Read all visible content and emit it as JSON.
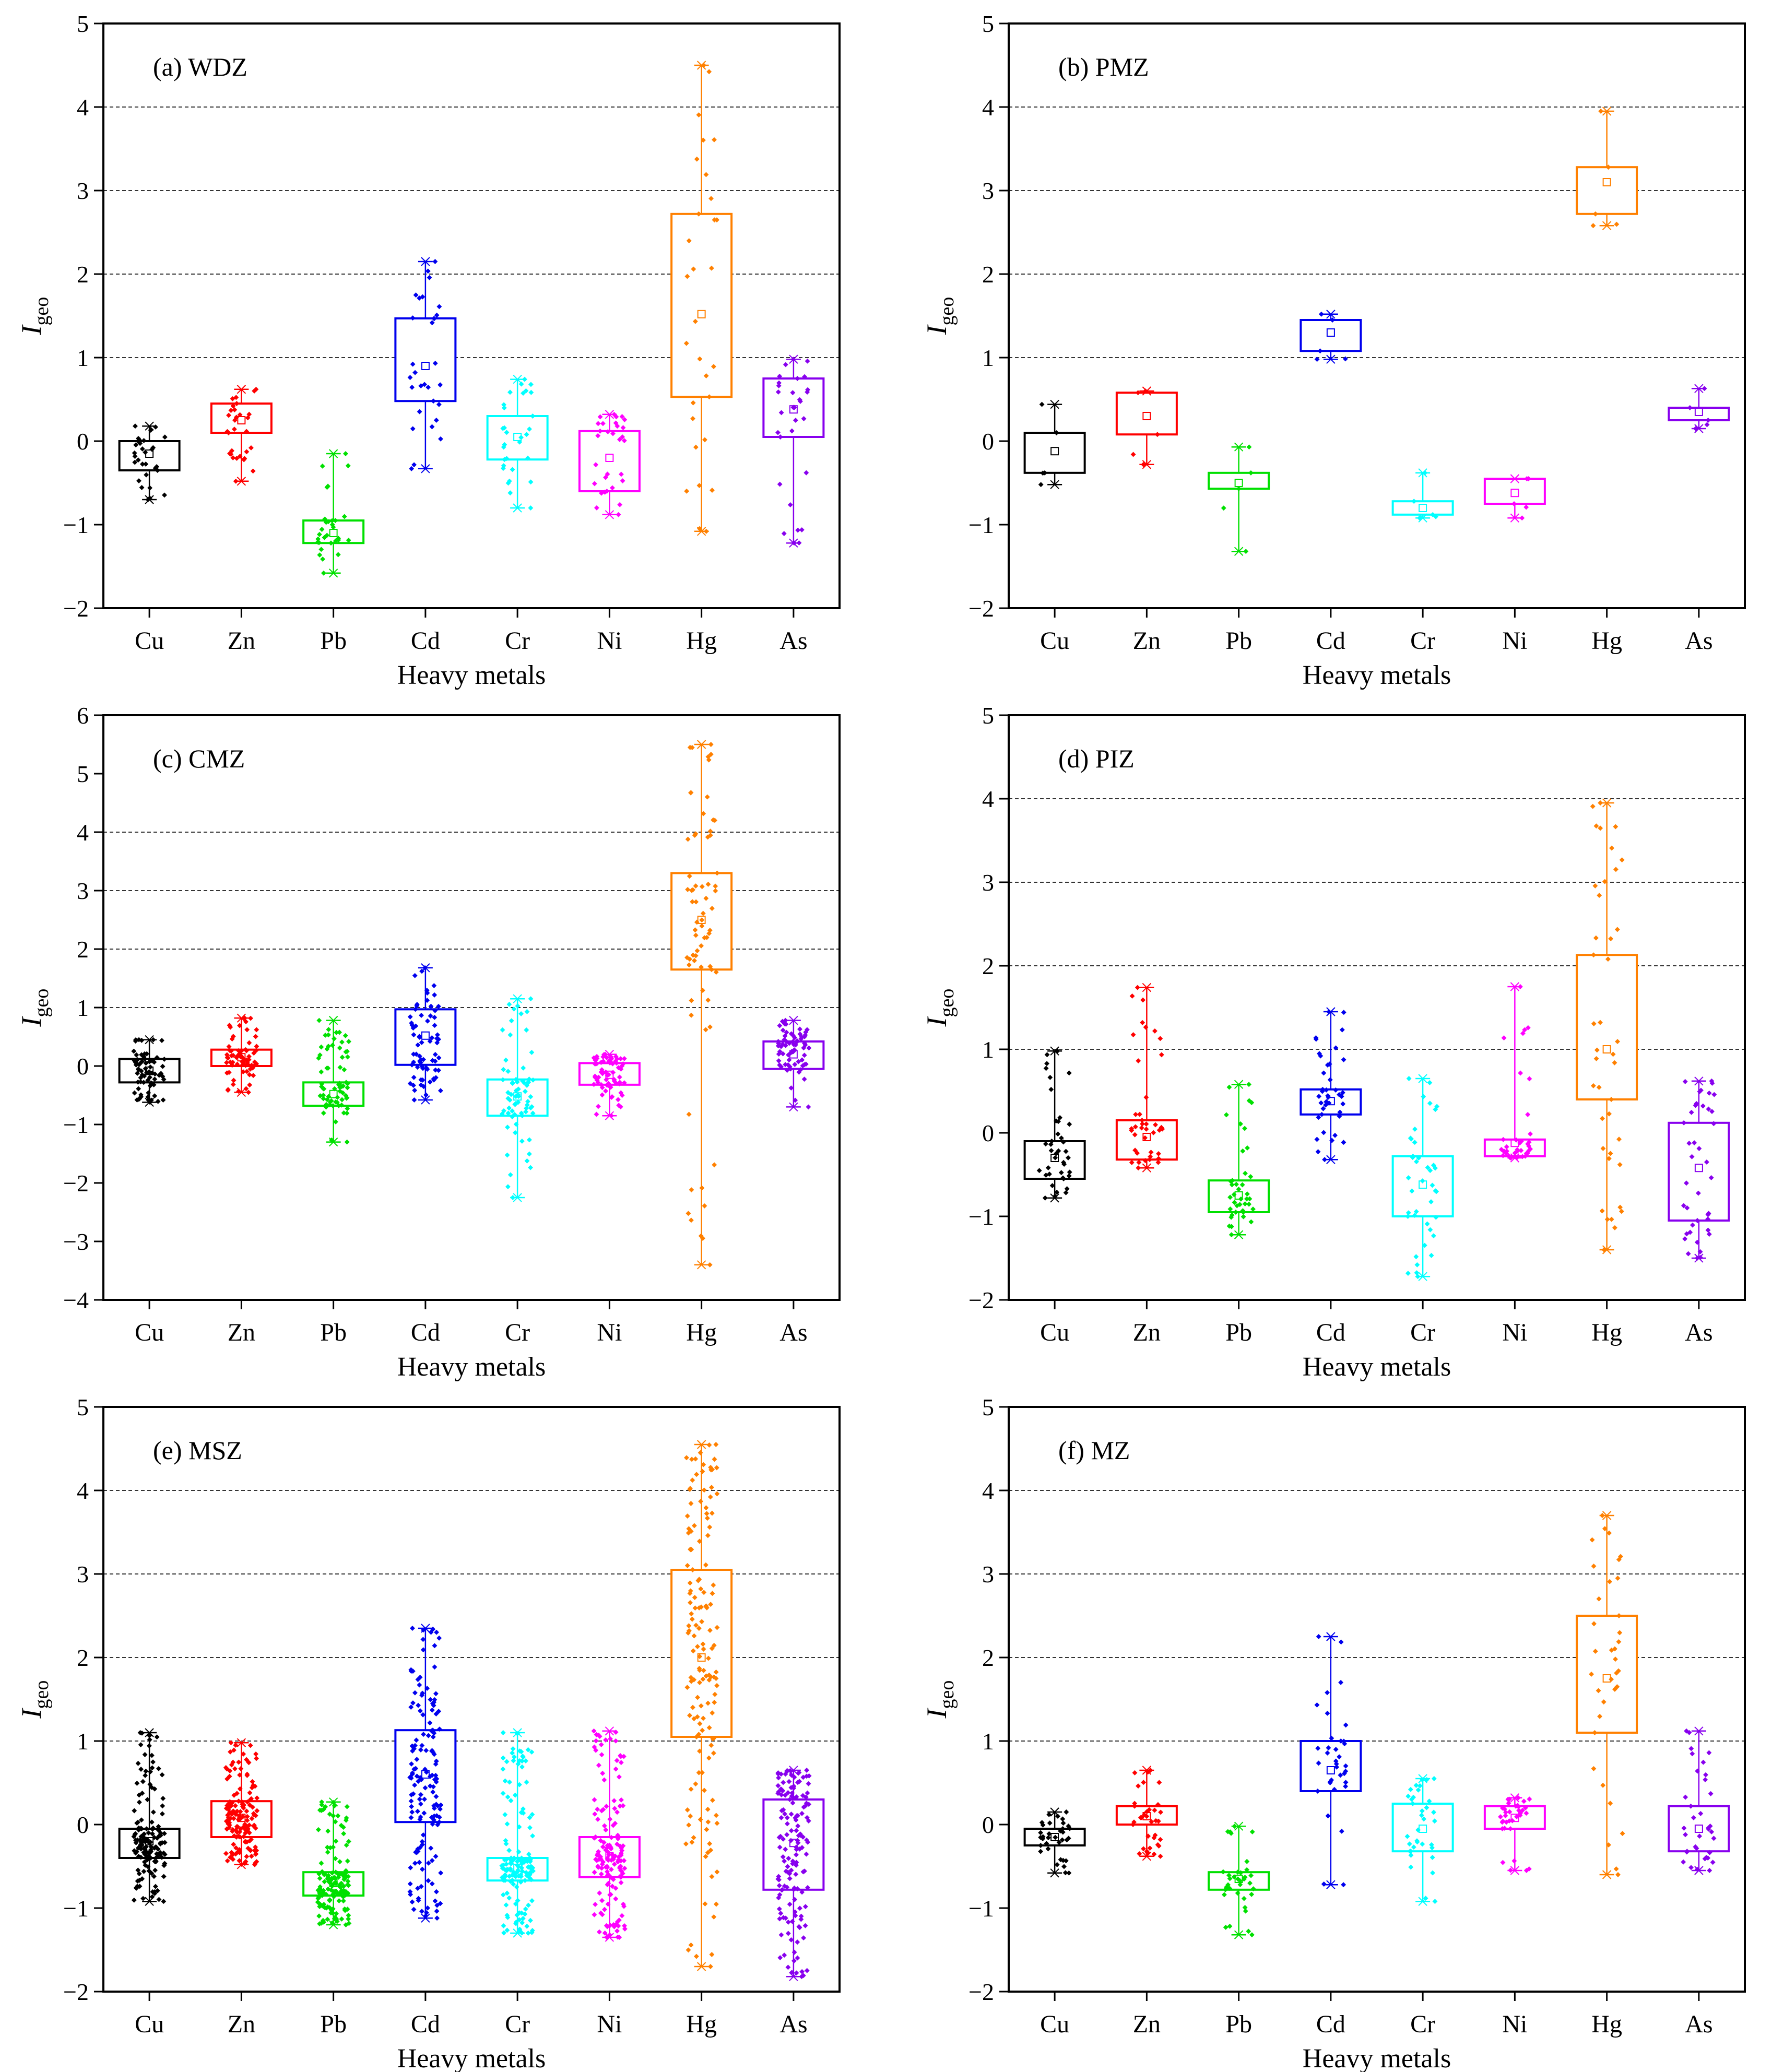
{
  "colors": {
    "Cu": "#000000",
    "Zn": "#ff0000",
    "Pb": "#00e000",
    "Cd": "#0000ee",
    "Cr": "#00ffff",
    "Ni": "#ff00ff",
    "Hg": "#ff8000",
    "As": "#8800ee"
  },
  "chart_data": [
    {
      "type": "box",
      "title": "(a) WDZ",
      "xlabel": "Heavy metals",
      "ylabel": "I",
      "ylabel_sub": "geo",
      "ylim": [
        -2,
        5
      ],
      "yticks": [
        -2,
        -1,
        0,
        1,
        2,
        3,
        4,
        5
      ],
      "ytick_labels": [
        "−2",
        "−1",
        "0",
        "1",
        "2",
        "3",
        "4",
        "5"
      ],
      "gridlines": [
        1,
        2,
        3,
        4
      ],
      "categories": [
        "Cu",
        "Zn",
        "Pb",
        "Cd",
        "Cr",
        "Ni",
        "Hg",
        "As"
      ],
      "boxes": [
        {
          "min": -0.7,
          "q1": -0.35,
          "q3": 0.0,
          "max": 0.18,
          "mean": -0.15,
          "n": 30
        },
        {
          "min": -0.48,
          "q1": 0.1,
          "q3": 0.45,
          "max": 0.62,
          "mean": 0.25,
          "n": 30
        },
        {
          "min": -1.58,
          "q1": -1.22,
          "q3": -0.95,
          "max": -0.15,
          "mean": -1.1,
          "n": 30
        },
        {
          "min": -0.33,
          "q1": 0.48,
          "q3": 1.47,
          "max": 2.15,
          "mean": 0.9,
          "n": 30
        },
        {
          "min": -0.8,
          "q1": -0.22,
          "q3": 0.3,
          "max": 0.74,
          "mean": 0.05,
          "n": 30
        },
        {
          "min": -0.88,
          "q1": -0.6,
          "q3": 0.12,
          "max": 0.32,
          "mean": -0.2,
          "n": 30
        },
        {
          "min": -1.08,
          "q1": 0.53,
          "q3": 2.72,
          "max": 4.5,
          "mean": 1.52,
          "n": 30
        },
        {
          "min": -1.22,
          "q1": 0.05,
          "q3": 0.75,
          "max": 0.98,
          "mean": 0.38,
          "n": 30
        }
      ]
    },
    {
      "type": "box",
      "title": "(b) PMZ",
      "xlabel": "Heavy metals",
      "ylabel": "I",
      "ylabel_sub": "geo",
      "ylim": [
        -2,
        5
      ],
      "yticks": [
        -2,
        -1,
        0,
        1,
        2,
        3,
        4,
        5
      ],
      "ytick_labels": [
        "−2",
        "−1",
        "0",
        "1",
        "2",
        "3",
        "4",
        "5"
      ],
      "gridlines": [
        1,
        2,
        3,
        4
      ],
      "categories": [
        "Cu",
        "Zn",
        "Pb",
        "Cd",
        "Cr",
        "Ni",
        "Hg",
        "As"
      ],
      "boxes": [
        {
          "min": -0.52,
          "q1": -0.38,
          "q3": 0.1,
          "max": 0.44,
          "mean": -0.12,
          "n": 5
        },
        {
          "min": -0.28,
          "q1": 0.08,
          "q3": 0.58,
          "max": 0.6,
          "mean": 0.3,
          "n": 5
        },
        {
          "min": -1.32,
          "q1": -0.57,
          "q3": -0.38,
          "max": -0.07,
          "mean": -0.5,
          "n": 5
        },
        {
          "min": 0.98,
          "q1": 1.08,
          "q3": 1.45,
          "max": 1.52,
          "mean": 1.3,
          "n": 5
        },
        {
          "min": -0.92,
          "q1": -0.88,
          "q3": -0.72,
          "max": -0.38,
          "mean": -0.8,
          "n": 5
        },
        {
          "min": -0.92,
          "q1": -0.75,
          "q3": -0.45,
          "max": -0.45,
          "mean": -0.62,
          "n": 5
        },
        {
          "min": 2.58,
          "q1": 2.72,
          "q3": 3.28,
          "max": 3.95,
          "mean": 3.1,
          "n": 5
        },
        {
          "min": 0.15,
          "q1": 0.25,
          "q3": 0.4,
          "max": 0.63,
          "mean": 0.35,
          "n": 5
        }
      ]
    },
    {
      "type": "box",
      "title": "(c) CMZ",
      "xlabel": "Heavy metals",
      "ylabel": "I",
      "ylabel_sub": "geo",
      "ylim": [
        -4,
        6
      ],
      "yticks": [
        -4,
        -3,
        -2,
        -1,
        0,
        1,
        2,
        3,
        4,
        5,
        6
      ],
      "ytick_labels": [
        "−4",
        "−3",
        "−2",
        "−1",
        "0",
        "1",
        "2",
        "3",
        "4",
        "5",
        "6"
      ],
      "gridlines": [
        1,
        2,
        3,
        4
      ],
      "categories": [
        "Cu",
        "Zn",
        "Pb",
        "Cd",
        "Cr",
        "Ni",
        "Hg",
        "As"
      ],
      "boxes": [
        {
          "min": -0.62,
          "q1": -0.28,
          "q3": 0.12,
          "max": 0.45,
          "mean": -0.08,
          "n": 70
        },
        {
          "min": -0.45,
          "q1": 0.0,
          "q3": 0.28,
          "max": 0.82,
          "mean": 0.15,
          "n": 70
        },
        {
          "min": -1.3,
          "q1": -0.68,
          "q3": -0.28,
          "max": 0.78,
          "mean": -0.48,
          "n": 70
        },
        {
          "min": -0.58,
          "q1": 0.02,
          "q3": 0.97,
          "max": 1.68,
          "mean": 0.52,
          "n": 70
        },
        {
          "min": -2.25,
          "q1": -0.85,
          "q3": -0.23,
          "max": 1.15,
          "mean": -0.52,
          "n": 70
        },
        {
          "min": -0.85,
          "q1": -0.32,
          "q3": 0.05,
          "max": 0.2,
          "mean": -0.15,
          "n": 70
        },
        {
          "min": -3.4,
          "q1": 1.65,
          "q3": 3.3,
          "max": 5.5,
          "mean": 2.5,
          "n": 70
        },
        {
          "min": -0.7,
          "q1": -0.05,
          "q3": 0.42,
          "max": 0.78,
          "mean": 0.2,
          "n": 70
        }
      ]
    },
    {
      "type": "box",
      "title": "(d) PIZ",
      "xlabel": "Heavy metals",
      "ylabel": "I",
      "ylabel_sub": "geo",
      "ylim": [
        -2,
        5
      ],
      "yticks": [
        -2,
        -1,
        0,
        1,
        2,
        3,
        4,
        5
      ],
      "ytick_labels": [
        "−2",
        "−1",
        "0",
        "1",
        "2",
        "3",
        "4",
        "5"
      ],
      "gridlines": [
        1,
        2,
        3,
        4
      ],
      "categories": [
        "Cu",
        "Zn",
        "Pb",
        "Cd",
        "Cr",
        "Ni",
        "Hg",
        "As"
      ],
      "boxes": [
        {
          "min": -0.78,
          "q1": -0.55,
          "q3": -0.1,
          "max": 0.98,
          "mean": -0.3,
          "n": 40
        },
        {
          "min": -0.42,
          "q1": -0.32,
          "q3": 0.15,
          "max": 1.74,
          "mean": -0.05,
          "n": 40
        },
        {
          "min": -1.22,
          "q1": -0.95,
          "q3": -0.57,
          "max": 0.58,
          "mean": -0.75,
          "n": 40
        },
        {
          "min": -0.32,
          "q1": 0.22,
          "q3": 0.52,
          "max": 1.45,
          "mean": 0.38,
          "n": 40
        },
        {
          "min": -1.72,
          "q1": -1.0,
          "q3": -0.28,
          "max": 0.65,
          "mean": -0.62,
          "n": 40
        },
        {
          "min": -0.3,
          "q1": -0.28,
          "q3": -0.08,
          "max": 1.75,
          "mean": -0.12,
          "n": 40
        },
        {
          "min": -1.4,
          "q1": 0.4,
          "q3": 2.13,
          "max": 3.95,
          "mean": 1.0,
          "n": 40
        },
        {
          "min": -1.5,
          "q1": -1.05,
          "q3": 0.12,
          "max": 0.62,
          "mean": -0.42,
          "n": 40
        }
      ]
    },
    {
      "type": "box",
      "title": "(e) MSZ",
      "xlabel": "Heavy metals",
      "ylabel": "I",
      "ylabel_sub": "geo",
      "ylim": [
        -2,
        5
      ],
      "yticks": [
        -2,
        -1,
        0,
        1,
        2,
        3,
        4,
        5
      ],
      "ytick_labels": [
        "−2",
        "−1",
        "0",
        "1",
        "2",
        "3",
        "4",
        "5"
      ],
      "gridlines": [
        1,
        2,
        3,
        4
      ],
      "categories": [
        "Cu",
        "Zn",
        "Pb",
        "Cd",
        "Cr",
        "Ni",
        "Hg",
        "As"
      ],
      "boxes": [
        {
          "min": -0.92,
          "q1": -0.4,
          "q3": -0.05,
          "max": 1.1,
          "mean": -0.2,
          "n": 150
        },
        {
          "min": -0.48,
          "q1": -0.15,
          "q3": 0.28,
          "max": 0.98,
          "mean": 0.08,
          "n": 150
        },
        {
          "min": -1.2,
          "q1": -0.85,
          "q3": -0.57,
          "max": 0.27,
          "mean": -0.7,
          "n": 150
        },
        {
          "min": -1.12,
          "q1": 0.03,
          "q3": 1.13,
          "max": 2.35,
          "mean": 0.6,
          "n": 150
        },
        {
          "min": -1.3,
          "q1": -0.67,
          "q3": -0.4,
          "max": 1.1,
          "mean": -0.52,
          "n": 150
        },
        {
          "min": -1.35,
          "q1": -0.63,
          "q3": -0.15,
          "max": 1.12,
          "mean": -0.38,
          "n": 150
        },
        {
          "min": -1.7,
          "q1": 1.05,
          "q3": 3.05,
          "max": 4.55,
          "mean": 2.0,
          "n": 150
        },
        {
          "min": -1.82,
          "q1": -0.78,
          "q3": 0.3,
          "max": 0.65,
          "mean": -0.22,
          "n": 150
        }
      ]
    },
    {
      "type": "box",
      "title": "(f) MZ",
      "xlabel": "Heavy metals",
      "ylabel": "I",
      "ylabel_sub": "geo",
      "ylim": [
        -2,
        5
      ],
      "yticks": [
        -2,
        -1,
        0,
        1,
        2,
        3,
        4,
        5
      ],
      "ytick_labels": [
        "−2",
        "−1",
        "0",
        "1",
        "2",
        "3",
        "4",
        "5"
      ],
      "gridlines": [
        1,
        2,
        3,
        4
      ],
      "categories": [
        "Cu",
        "Zn",
        "Pb",
        "Cd",
        "Cr",
        "Ni",
        "Hg",
        "As"
      ],
      "boxes": [
        {
          "min": -0.58,
          "q1": -0.25,
          "q3": -0.05,
          "max": 0.15,
          "mean": -0.15,
          "n": 35
        },
        {
          "min": -0.38,
          "q1": 0.0,
          "q3": 0.22,
          "max": 0.65,
          "mean": 0.1,
          "n": 35
        },
        {
          "min": -1.32,
          "q1": -0.78,
          "q3": -0.57,
          "max": -0.02,
          "mean": -0.65,
          "n": 35
        },
        {
          "min": -0.72,
          "q1": 0.4,
          "q3": 1.0,
          "max": 2.25,
          "mean": 0.65,
          "n": 35
        },
        {
          "min": -0.92,
          "q1": -0.32,
          "q3": 0.25,
          "max": 0.55,
          "mean": -0.05,
          "n": 35
        },
        {
          "min": -0.55,
          "q1": -0.05,
          "q3": 0.22,
          "max": 0.32,
          "mean": 0.08,
          "n": 35
        },
        {
          "min": -0.6,
          "q1": 1.1,
          "q3": 2.5,
          "max": 3.7,
          "mean": 1.75,
          "n": 35
        },
        {
          "min": -0.55,
          "q1": -0.32,
          "q3": 0.22,
          "max": 1.12,
          "mean": -0.05,
          "n": 35
        }
      ]
    }
  ]
}
